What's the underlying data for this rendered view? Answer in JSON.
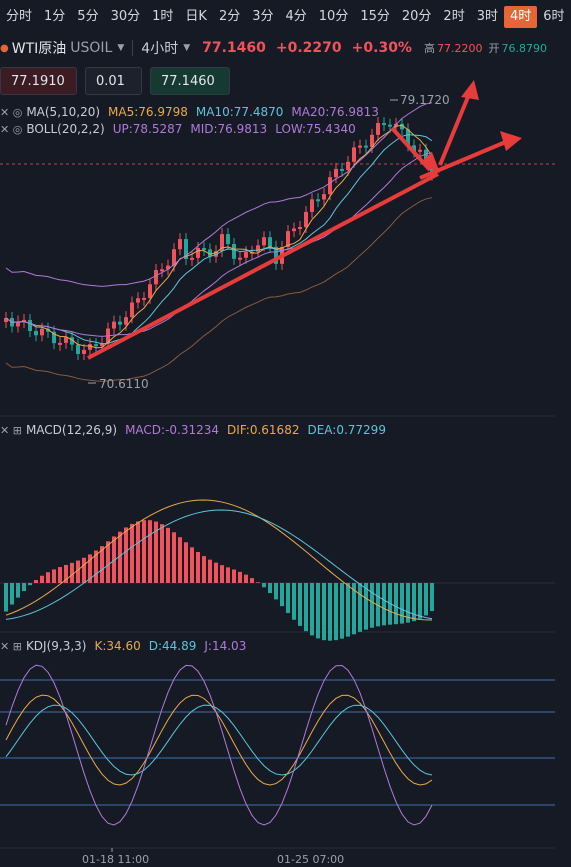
{
  "timeframes": [
    {
      "label": "分时",
      "active": false
    },
    {
      "label": "1分",
      "active": false
    },
    {
      "label": "5分",
      "active": false
    },
    {
      "label": "30分",
      "active": false
    },
    {
      "label": "1时",
      "active": false
    },
    {
      "label": "日K",
      "active": false
    },
    {
      "label": "2分",
      "active": false
    },
    {
      "label": "3分",
      "active": false
    },
    {
      "label": "4分",
      "active": false
    },
    {
      "label": "10分",
      "active": false
    },
    {
      "label": "15分",
      "active": false
    },
    {
      "label": "20分",
      "active": false
    },
    {
      "label": "2时",
      "active": false
    },
    {
      "label": "3时",
      "active": false
    },
    {
      "label": "4时",
      "active": true
    },
    {
      "label": "6时",
      "active": false
    }
  ],
  "header": {
    "name": "WTI原油",
    "code": "USOIL",
    "timeframe": "4小时",
    "price": "77.1460",
    "change": "+0.2270",
    "change_pct": "+0.30%",
    "high_label": "高",
    "high": "77.2200",
    "open_label": "开",
    "open": "76.8790"
  },
  "order": {
    "sell_price": "77.1910",
    "quantity": "0.01",
    "buy_price": "77.1460"
  },
  "indicators": {
    "ma": {
      "name": "MA(5,10,20)",
      "ma5": "MA5:76.9798",
      "ma10": "MA10:77.4870",
      "ma20": "MA20:76.9813"
    },
    "boll": {
      "name": "BOLL(20,2,2)",
      "up": "UP:78.5287",
      "mid": "MID:76.9813",
      "low": "LOW:75.4340"
    },
    "macd": {
      "name": "MACD(12,26,9)",
      "macd": "MACD:-0.31234",
      "dif": "DIF:0.61682",
      "dea": "DEA:0.77299"
    },
    "kdj": {
      "name": "KDJ(9,3,3)",
      "k": "K:34.60",
      "d": "D:44.89",
      "j": "J:14.03"
    }
  },
  "price_labels": {
    "high": "79.1720",
    "low": "70.6110"
  },
  "time_labels": [
    "01-18 11:00",
    "01-25 07:00"
  ],
  "colors": {
    "up": "#f0535b",
    "down": "#26a69a",
    "ma5": "#e9a94c",
    "ma10": "#5cc5d9",
    "ma20": "#b07ad9",
    "accent": "#e46535"
  }
}
